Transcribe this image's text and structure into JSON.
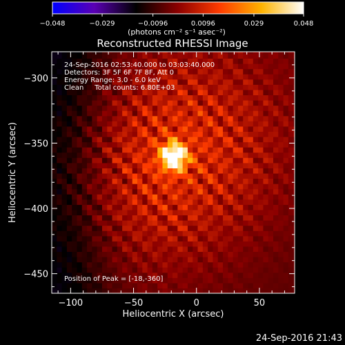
{
  "chart_data": {
    "type": "heatmap",
    "title": "Reconstructed RHESSI Image",
    "xlabel": "Heliocentric X (arcsec)",
    "ylabel": "Heliocentric Y (arcsec)",
    "xlim": [
      -115,
      78
    ],
    "ylim": [
      -465,
      -280
    ],
    "x_ticks": [
      -100,
      -50,
      0,
      50
    ],
    "x_tick_labels": [
      "−100",
      "−50",
      "0",
      "50"
    ],
    "y_ticks": [
      -300,
      -350,
      -400,
      -450
    ],
    "y_tick_labels": [
      "−300",
      "−350",
      "−400",
      "−450"
    ],
    "colorbar": {
      "min": -0.048,
      "max": 0.048,
      "ticks": [
        -0.048,
        -0.029,
        -0.0096,
        0.0096,
        0.029,
        0.048
      ],
      "tick_labels": [
        "−0.048",
        "−0.029",
        "−0.0096",
        "0.0096",
        "0.029",
        "0.048"
      ],
      "units_label": "(photons cm⁻² s⁻¹ asec⁻²)",
      "colormap": [
        "#0000ff",
        "#5a00b4",
        "#000000",
        "#8c0000",
        "#ff3c00",
        "#ffb400",
        "#ffffff"
      ]
    },
    "annotations": {
      "time_range": "24-Sep-2016 02:53:40.000 to 03:03:40.000",
      "detectors": "Detectors: 3F 5F 6F 7F 8F, Att 0",
      "energy_range": "Energy Range: 3.0 - 6.0 keV",
      "clean_counts": "Clean     Total counts: 6.80E+03",
      "peak_position": "Position of Peak = [-18,-360]"
    },
    "peak": {
      "x": -18,
      "y": -360
    },
    "generated": "24-Sep-2016 21:43"
  }
}
